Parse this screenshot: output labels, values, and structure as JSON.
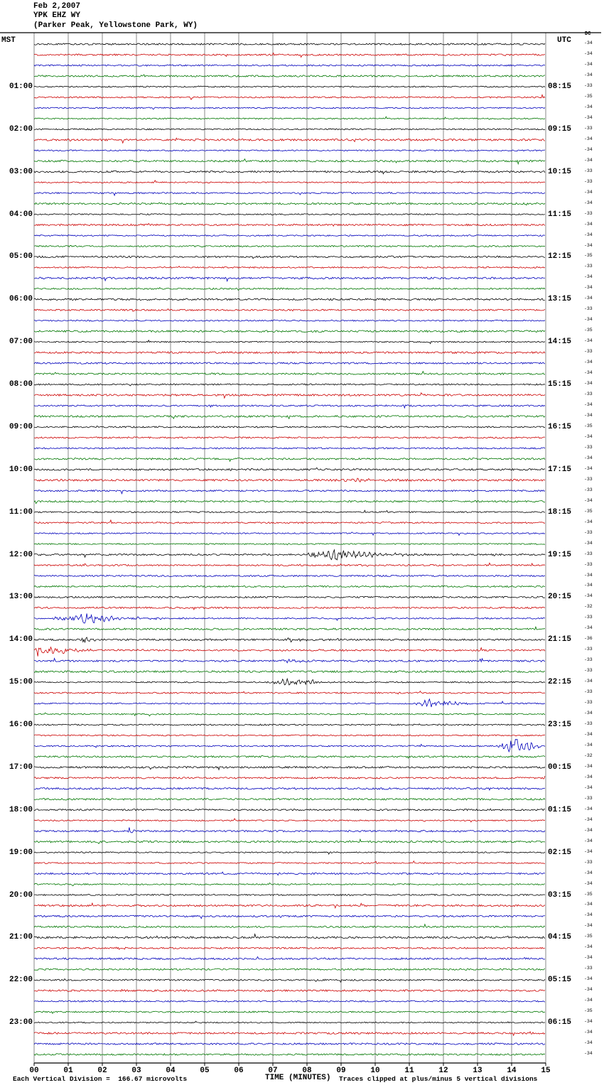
{
  "header": {
    "date": "Feb 2,2007",
    "station": "YPK EHZ WY",
    "location": "(Parker Peak, Yellowstone Park, WY)"
  },
  "axes": {
    "left_tz": "MST",
    "right_tz": "UTC",
    "dc_label": "DC"
  },
  "footer": {
    "scale_note": "Each Vertical Division =  166.67 microvolts",
    "xlabel": "TIME (MINUTES)",
    "clip_note": "Traces clipped at plus/minus 5 vertical divisions"
  },
  "chart_data": {
    "type": "line",
    "title": "Helicorder seismogram YPK EHZ WY Feb 2,2007",
    "station": "YPK EHZ WY",
    "station_location": "Parker Peak, Yellowstone Park, WY",
    "date": "Feb 2,2007",
    "xlabel": "TIME (MINUTES)",
    "x_range_minutes": [
      0,
      15
    ],
    "minutes_per_row": 15,
    "rows": 96,
    "first_row_start_mst": "00:00",
    "mst_utc_offset_hours": 7,
    "grid": "vertical lines every 1 minute",
    "legend_position": "none",
    "color_cycle": [
      "#000000",
      "#cc0000",
      "#0000bb",
      "#007700"
    ],
    "left_time_labels_mst": [
      "01:00",
      "02:00",
      "03:00",
      "04:00",
      "05:00",
      "06:00",
      "07:00",
      "08:00",
      "09:00",
      "10:00",
      "11:00",
      "12:00",
      "13:00",
      "14:00",
      "15:00",
      "16:00",
      "17:00",
      "18:00",
      "19:00",
      "20:00",
      "21:00",
      "22:00",
      "23:00"
    ],
    "right_time_labels_utc": [
      "08:15",
      "09:15",
      "10:15",
      "11:15",
      "12:15",
      "13:15",
      "14:15",
      "15:15",
      "16:15",
      "17:15",
      "18:15",
      "19:15",
      "20:15",
      "21:15",
      "22:15",
      "23:15",
      "00:15",
      "01:15",
      "02:15",
      "03:15",
      "04:15",
      "05:15",
      "06:15"
    ],
    "minute_tick_labels": [
      "00",
      "01",
      "02",
      "03",
      "04",
      "05",
      "06",
      "07",
      "08",
      "09",
      "10",
      "11",
      "12",
      "13",
      "14",
      "15"
    ],
    "dc_offsets": [
      "-34",
      "-34",
      "-34",
      "-34",
      "-33",
      "-35",
      "-34",
      "-34",
      "-33",
      "-34",
      "-34",
      "-34",
      "-33",
      "-33",
      "-34",
      "-34",
      "-33",
      "-34",
      "-34",
      "-34",
      "-35",
      "-33",
      "-34",
      "-34",
      "-34",
      "-33",
      "-34",
      "-35",
      "-34",
      "-33",
      "-34",
      "-34",
      "-34",
      "-33",
      "-34",
      "-34",
      "-35",
      "-34",
      "-33",
      "-34",
      "-34",
      "-33",
      "-33",
      "-34",
      "-35",
      "-34",
      "-33",
      "-34",
      "-33",
      "-33",
      "-34",
      "-34",
      "-34",
      "-32",
      "-33",
      "-34",
      "-36",
      "-33",
      "-33",
      "-33",
      "-34",
      "-33",
      "-33",
      "-34",
      "-33",
      "-34",
      "-34",
      "-32",
      "-34",
      "-34",
      "-34",
      "-33",
      "-34",
      "-34",
      "-34",
      "-34",
      "-34",
      "-33",
      "-34",
      "-34",
      "-35",
      "-34",
      "-34",
      "-34",
      "-35",
      "-34",
      "-34",
      "-33",
      "-34",
      "-34",
      "-34",
      "-35",
      "-34",
      "-34",
      "-34",
      "-34"
    ],
    "background_noise_divisions": 1,
    "events": [
      {
        "mst": "05:15",
        "row": 21,
        "start_min": 4.2,
        "attack_min": 0.05,
        "decay_min": 0.1,
        "amp": 2.2
      },
      {
        "mst": "10:15",
        "row": 41,
        "start_min": 8.4,
        "attack_min": 0.8,
        "decay_min": 1.2,
        "amp": 1.5
      },
      {
        "mst": "12:00",
        "row": 48,
        "start_min": 7.7,
        "attack_min": 1.2,
        "decay_min": 1.1,
        "amp": 6.5
      },
      {
        "mst": "13:30",
        "row": 54,
        "start_min": 0.3,
        "attack_min": 1.3,
        "decay_min": 0.9,
        "amp": 6.0
      },
      {
        "mst": "14:00",
        "row": 56,
        "start_min": 1.35,
        "attack_min": 0.1,
        "decay_min": 0.2,
        "amp": 4.5
      },
      {
        "mst": "14:00",
        "row": 56,
        "start_min": 7.4,
        "attack_min": 0.12,
        "decay_min": 0.25,
        "amp": 3.5
      },
      {
        "mst": "14:15",
        "row": 57,
        "start_min": 0.0,
        "attack_min": 0.1,
        "decay_min": 1.0,
        "amp": 6.0
      },
      {
        "mst": "14:30",
        "row": 58,
        "start_min": 6.95,
        "attack_min": 0.4,
        "decay_min": 0.5,
        "amp": 2.2
      },
      {
        "mst": "15:00",
        "row": 60,
        "start_min": 6.8,
        "attack_min": 0.8,
        "decay_min": 0.7,
        "amp": 5.0
      },
      {
        "mst": "15:30",
        "row": 62,
        "start_min": 11.1,
        "attack_min": 0.5,
        "decay_min": 0.7,
        "amp": 5.5
      },
      {
        "mst": "16:30",
        "row": 66,
        "start_min": 13.5,
        "attack_min": 0.6,
        "decay_min": 0.5,
        "amp": 10.0
      },
      {
        "mst": "18:30",
        "row": 74,
        "start_min": 2.75,
        "attack_min": 0.04,
        "decay_min": 0.12,
        "amp": 3.5
      },
      {
        "mst": "21:15",
        "row": 85,
        "start_min": 2.4,
        "attack_min": 0.05,
        "decay_min": 0.15,
        "amp": 3.0
      }
    ]
  }
}
